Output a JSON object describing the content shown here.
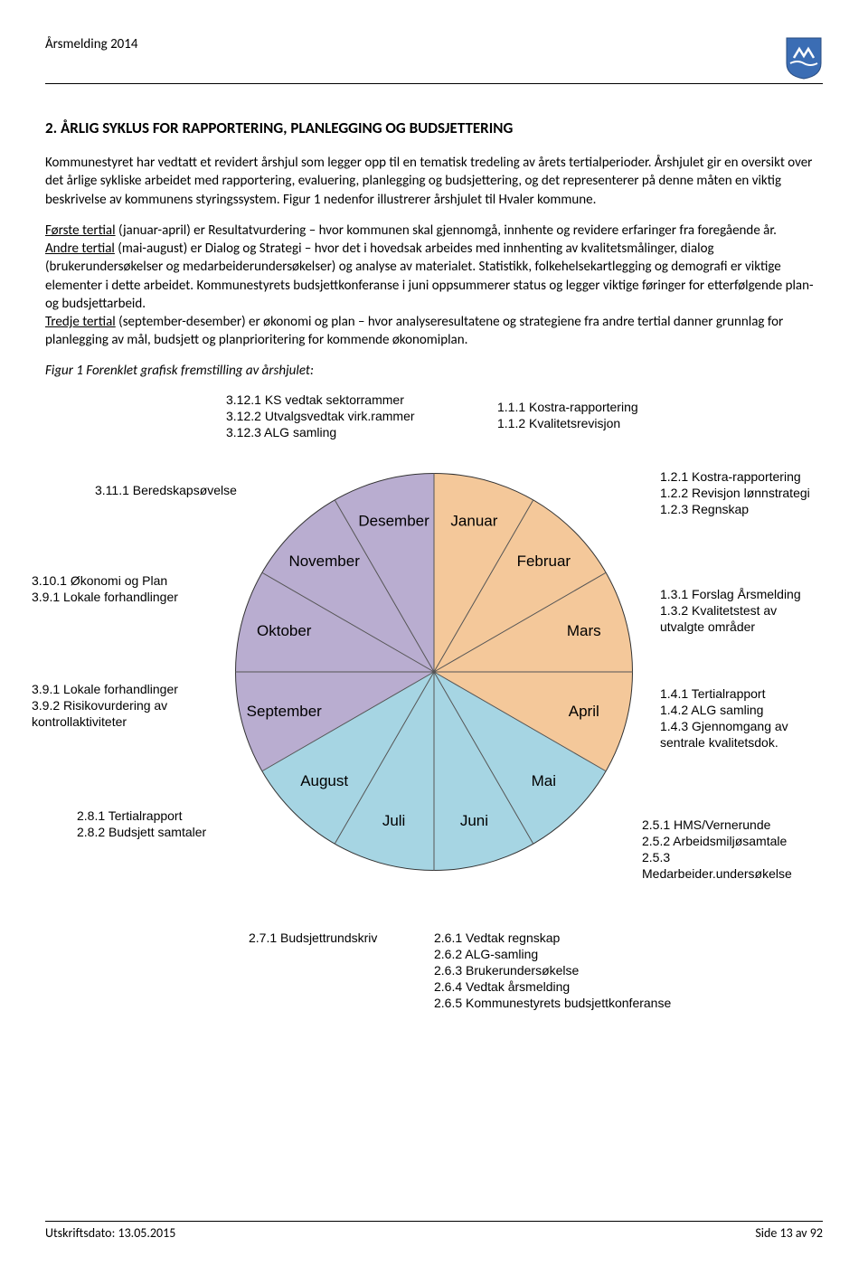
{
  "header": {
    "title": "Årsmelding 2014"
  },
  "section": {
    "heading": "2. ÅRLIG SYKLUS FOR RAPPORTERING, PLANLEGGING OG BUDSJETTERING",
    "para1": "Kommunestyret har vedtatt et revidert årshjul som legger opp til en tematisk tredeling av årets tertialperioder. Årshjulet gir en oversikt over det årlige sykliske arbeidet med rapportering, evaluering, planlegging og budsjettering, og det representerer på denne måten en viktig beskrivelse av kommunens styringssystem. Figur 1 nedenfor illustrerer årshjulet til Hvaler kommune.",
    "p2_u1": "Første tertial",
    "p2_r1": " (januar-april) er Resultatvurdering – hvor kommunen skal gjennomgå, innhente og revidere erfaringer fra foregående år.",
    "p2_u2": "Andre tertial",
    "p2_r2": " (mai-august) er Dialog og Strategi – hvor det i hovedsak arbeides med innhenting av kvalitetsmålinger, dialog (brukerundersøkelser og medarbeiderundersøkelser) og analyse av materialet. Statistikk, folkehelsekartlegging og demografi er viktige elementer i dette arbeidet. Kommunestyrets budsjettkonferanse i juni oppsummerer status og legger viktige føringer for etterfølgende plan- og budsjettarbeid.",
    "p2_u3": "Tredje tertial",
    "p2_r3": " (september-desember) er økonomi og plan – hvor analyseresultatene og strategiene fra andre tertial danner grunnlag for planlegging av mål, budsjett og planprioritering for kommende økonomiplan.",
    "figcap": "Figur 1   Forenklet grafisk fremstilling av årshjulet:"
  },
  "pie": {
    "months": [
      "Januar",
      "Februar",
      "Mars",
      "April",
      "Mai",
      "Juni",
      "Juli",
      "August",
      "September",
      "Oktober",
      "November",
      "Desember"
    ],
    "colors": {
      "tertial1": "#f4c89a",
      "tertial2": "#a6d5e3",
      "tertial3": "#b9add0",
      "border": "#555555"
    },
    "annotations": {
      "top_left": "3.12.1 KS vedtak sektorrammer\n3.12.2 Utvalgsvedtak virk.rammer\n3.12.3 ALG samling",
      "top_right": "1.1.1 Kostra-rapportering\n1.1.2 Kvalitetsrevisjon",
      "jan_right": "1.2.1 Kostra-rapportering\n1.2.2 Revisjon lønnstrategi\n1.2.3 Regnskap",
      "mar_right": "1.3.1 Forslag Årsmelding\n1.3.2 Kvalitetstest av\n          utvalgte områder",
      "apr_right": "1.4.1 Tertialrapport\n1.4.2 ALG samling\n1.4.3 Gjennomgang av\n          sentrale kvalitetsdok.",
      "mai_right": "2.5.1 HMS/Vernerunde\n2.5.2 Arbeidsmiljøsamtale\n2.5.3 Medarbeider.undersøkelse",
      "jun_bottom": "2.6.1 Vedtak regnskap\n2.6.2 ALG-samling\n2.6.3 Brukerundersøkelse\n2.6.4 Vedtak årsmelding\n2.6.5 Kommunestyrets budsjettkonferanse",
      "jul_bottom": "2.7.1 Budsjettrundskriv",
      "aug_left": "2.8.1 Tertialrapport\n2.8.2 Budsjett samtaler",
      "sep_left": "3.9.1 Lokale forhandlinger\n3.9.2 Risikovurdering av\n          kontrollaktiviteter",
      "okt_left": "3.10.1 Økonomi og Plan\n3.9.1 Lokale forhandlinger",
      "nov_left": "3.11.1 Beredskapsøvelse"
    }
  },
  "footer": {
    "left": "Utskriftsdato: 13.05.2015",
    "right": "Side 13 av 92"
  }
}
